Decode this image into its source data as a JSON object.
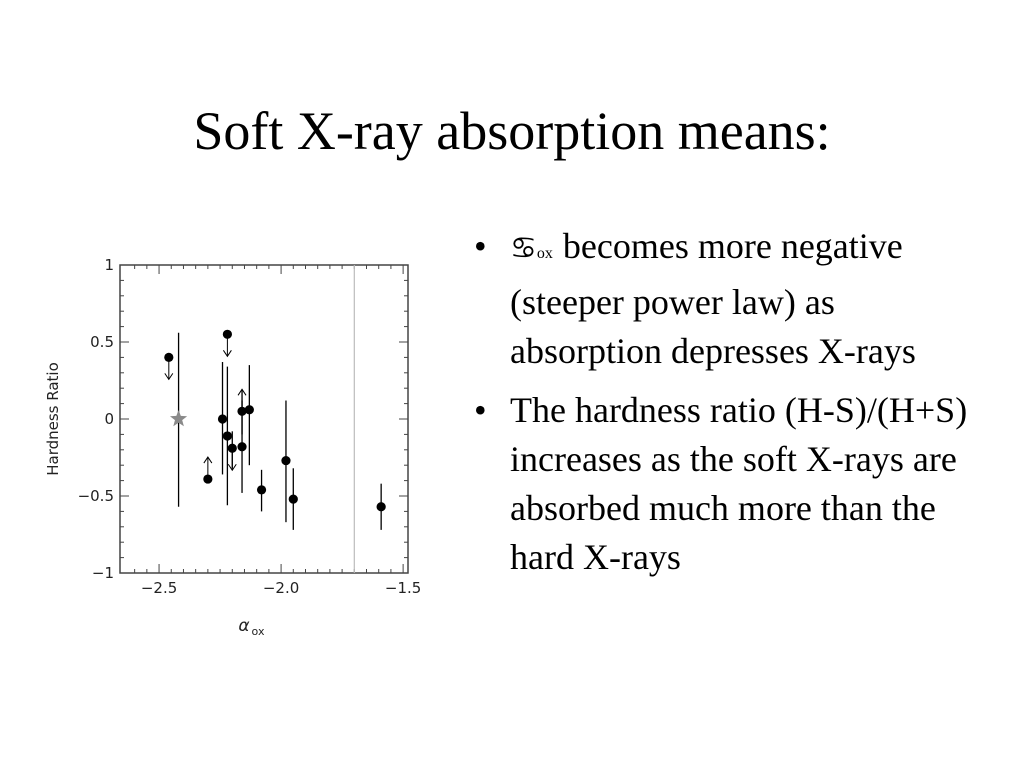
{
  "slide": {
    "title": "Soft X-ray absorption means:"
  },
  "bullets": [
    {
      "bullet_glyph": "•",
      "symbol": "♋",
      "symbol_subscript": "ox",
      "text": "becomes more negative (steeper power law) as absorption depresses X-rays"
    },
    {
      "bullet_glyph": "•",
      "text": "The hardness ratio (H-S)/(H+S) increases as the soft X-rays are absorbed much more than the hard X-rays"
    }
  ],
  "chart_data": {
    "type": "scatter",
    "ylabel": "Hardness Ratio",
    "xlabel": "α",
    "xlabel_subscript": "ox",
    "xlim": [
      -2.66,
      -1.48
    ],
    "ylim": [
      -1,
      1
    ],
    "x_ticks": [
      -2.5,
      -2.0,
      -1.5
    ],
    "x_tick_labels": [
      "−2.5",
      "−2.0",
      "−1.5"
    ],
    "y_ticks": [
      -1,
      -0.5,
      0,
      0.5,
      1
    ],
    "y_tick_labels": [
      "−1",
      "−0.5",
      "0",
      "0.5",
      "1"
    ],
    "reference_line_x": -1.7,
    "colors": {
      "points": "#000000",
      "star": "#8a8a8a",
      "reference_line": "#bbbbbb",
      "axes": "#444444"
    },
    "points": [
      {
        "x": -2.46,
        "y": 0.4,
        "err_low": null,
        "err_high": null,
        "limit": "upper"
      },
      {
        "x": -2.22,
        "y": 0.55,
        "err_low": null,
        "err_high": null,
        "limit": "upper"
      },
      {
        "x": -2.3,
        "y": -0.39,
        "err_low": null,
        "err_high": null,
        "limit": "lower"
      },
      {
        "x": -2.24,
        "y": 0.0,
        "err_low": -0.36,
        "err_high": 0.37,
        "limit": null
      },
      {
        "x": -2.22,
        "y": -0.11,
        "err_low": -0.56,
        "err_high": 0.34,
        "limit": null
      },
      {
        "x": -2.2,
        "y": -0.19,
        "err_low": -0.32,
        "err_high": -0.08,
        "limit": "upper"
      },
      {
        "x": -2.16,
        "y": -0.18,
        "err_low": -0.48,
        "err_high": 0.18,
        "limit": null
      },
      {
        "x": -2.16,
        "y": 0.05,
        "err_low": -0.1,
        "err_high": 0.12,
        "limit": "lower"
      },
      {
        "x": -2.13,
        "y": 0.06,
        "err_low": -0.3,
        "err_high": 0.35,
        "limit": null
      },
      {
        "x": -2.08,
        "y": -0.46,
        "err_low": -0.6,
        "err_high": -0.33,
        "limit": null
      },
      {
        "x": -1.98,
        "y": -0.27,
        "err_low": -0.67,
        "err_high": 0.12,
        "limit": null
      },
      {
        "x": -1.95,
        "y": -0.52,
        "err_low": -0.72,
        "err_high": -0.32,
        "limit": null
      },
      {
        "x": -1.59,
        "y": -0.57,
        "err_low": -0.72,
        "err_high": -0.42,
        "limit": null
      }
    ],
    "star_points": [
      {
        "x": -2.42,
        "y": 0.0,
        "err_low": -0.57,
        "err_high": 0.56
      }
    ]
  }
}
